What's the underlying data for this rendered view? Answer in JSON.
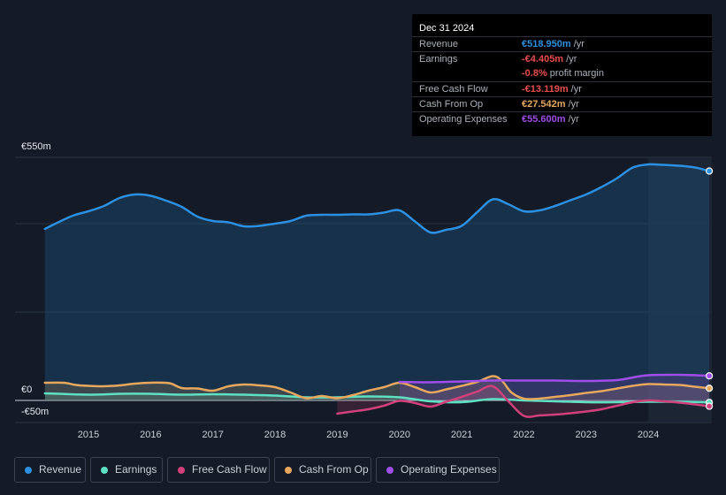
{
  "chart_data": {
    "type": "area",
    "title": "",
    "xlabel": "",
    "ylabel": "",
    "currency": "€",
    "ylim": [
      -50,
      550
    ],
    "y_axis_labels": [
      "€550m",
      "€0",
      "-€50m"
    ],
    "x_ticks": [
      "2015",
      "2016",
      "2017",
      "2018",
      "2019",
      "2020",
      "2021",
      "2022",
      "2023",
      "2024"
    ],
    "x_range": [
      2014.3,
      2024.98
    ],
    "highlight_start": 2024.0,
    "series": [
      {
        "name": "Revenue",
        "color": "#2c8fe0",
        "key": "revenue",
        "fill": true,
        "x": [
          2014.3,
          2014.5,
          2014.75,
          2015.0,
          2015.25,
          2015.5,
          2015.75,
          2016.0,
          2016.25,
          2016.5,
          2016.75,
          2017.0,
          2017.25,
          2017.5,
          2017.75,
          2018.0,
          2018.25,
          2018.5,
          2018.75,
          2019.0,
          2019.25,
          2019.5,
          2019.75,
          2020.0,
          2020.25,
          2020.5,
          2020.75,
          2021.0,
          2021.25,
          2021.5,
          2021.75,
          2022.0,
          2022.25,
          2022.5,
          2022.75,
          2023.0,
          2023.25,
          2023.5,
          2023.75,
          2024.0,
          2024.25,
          2024.5,
          2024.75,
          2024.98
        ],
        "values": [
          388,
          402,
          418,
          428,
          440,
          458,
          466,
          463,
          452,
          438,
          416,
          406,
          403,
          394,
          395,
          400,
          406,
          418,
          420,
          420,
          421,
          421,
          425,
          430,
          405,
          380,
          386,
          395,
          426,
          455,
          444,
          428,
          430,
          440,
          453,
          466,
          483,
          503,
          527,
          534,
          533,
          531,
          527,
          518.95
        ]
      },
      {
        "name": "Earnings",
        "color": "#5fe0c3",
        "key": "earnings",
        "x": [
          2014.3,
          2015.0,
          2015.5,
          2016.0,
          2016.5,
          2017.0,
          2017.5,
          2018.0,
          2018.5,
          2019.0,
          2019.5,
          2020.0,
          2020.5,
          2021.0,
          2021.5,
          2022.0,
          2022.5,
          2023.0,
          2023.5,
          2024.0,
          2024.5,
          2024.98
        ],
        "values": [
          16,
          13,
          15,
          15,
          13,
          14,
          13,
          11,
          7,
          7,
          9,
          7,
          -2,
          -4,
          3,
          0,
          -2,
          -4,
          -4,
          -3,
          -3,
          -4.405
        ]
      },
      {
        "name": "Free Cash Flow",
        "color": "#d0407a",
        "key": "fcf",
        "x": [
          2019.0,
          2019.25,
          2019.5,
          2019.75,
          2020.0,
          2020.25,
          2020.5,
          2020.75,
          2021.0,
          2021.25,
          2021.5,
          2021.75,
          2022.0,
          2022.25,
          2022.5,
          2022.75,
          2023.0,
          2023.25,
          2023.5,
          2023.75,
          2024.0,
          2024.25,
          2024.5,
          2024.75,
          2024.98
        ],
        "values": [
          -30,
          -25,
          -20,
          -12,
          -1,
          -6,
          -14,
          -3,
          8,
          20,
          32,
          -2,
          -35,
          -34,
          -32,
          -29,
          -25,
          -20,
          -12,
          -4,
          0,
          -2,
          -5,
          -9,
          -13.119
        ]
      },
      {
        "name": "Cash From Op",
        "color": "#e6a85f",
        "key": "cfo",
        "x": [
          2014.3,
          2014.6,
          2014.8,
          2015.0,
          2015.25,
          2015.5,
          2015.75,
          2016.0,
          2016.3,
          2016.5,
          2016.75,
          2017.0,
          2017.25,
          2017.5,
          2017.75,
          2018.0,
          2018.25,
          2018.5,
          2018.75,
          2019.0,
          2019.25,
          2019.5,
          2019.75,
          2020.0,
          2020.25,
          2020.5,
          2020.75,
          2021.0,
          2021.25,
          2021.5,
          2021.65,
          2021.8,
          2022.0,
          2022.25,
          2022.5,
          2022.75,
          2023.0,
          2023.25,
          2023.5,
          2023.75,
          2024.0,
          2024.25,
          2024.5,
          2024.75,
          2024.98
        ],
        "values": [
          40,
          40,
          35,
          33,
          32,
          34,
          38,
          40,
          39,
          28,
          27,
          22,
          32,
          36,
          34,
          30,
          18,
          5,
          10,
          5,
          12,
          22,
          30,
          40,
          30,
          18,
          25,
          33,
          42,
          55,
          44,
          18,
          4,
          4,
          8,
          12,
          17,
          21,
          27,
          33,
          37,
          36,
          35,
          31,
          27.542
        ]
      },
      {
        "name": "Operating Expenses",
        "color": "#a04ee8",
        "key": "opex",
        "x": [
          2020.0,
          2020.5,
          2021.0,
          2021.5,
          2022.0,
          2022.5,
          2023.0,
          2023.5,
          2023.75,
          2024.0,
          2024.5,
          2024.98
        ],
        "values": [
          42,
          41,
          43,
          45,
          45,
          45,
          44,
          46,
          52,
          57,
          58,
          55.6
        ]
      }
    ]
  },
  "tooltip": {
    "date": "Dec 31 2024",
    "rows": [
      {
        "label": "Revenue",
        "value": "€518.950m",
        "unit": " /yr",
        "color": "#2c8fe0"
      },
      {
        "label": "Earnings",
        "value": "-€4.405m",
        "unit": " /yr",
        "color": "#e84c4c"
      },
      {
        "label": "",
        "value": "-0.8%",
        "unit": " profit margin",
        "color": "#e84c4c"
      },
      {
        "label": "Free Cash Flow",
        "value": "-€13.119m",
        "unit": " /yr",
        "color": "#e84c4c"
      },
      {
        "label": "Cash From Op",
        "value": "€27.542m",
        "unit": " /yr",
        "color": "#e6a85f"
      },
      {
        "label": "Operating Expenses",
        "value": "€55.600m",
        "unit": " /yr",
        "color": "#a04ee8"
      }
    ]
  },
  "legend": [
    {
      "label": "Revenue",
      "color": "#2c8fe0"
    },
    {
      "label": "Earnings",
      "color": "#5fe0c3"
    },
    {
      "label": "Free Cash Flow",
      "color": "#d0407a"
    },
    {
      "label": "Cash From Op",
      "color": "#e6a85f"
    },
    {
      "label": "Operating Expenses",
      "color": "#a04ee8"
    }
  ]
}
